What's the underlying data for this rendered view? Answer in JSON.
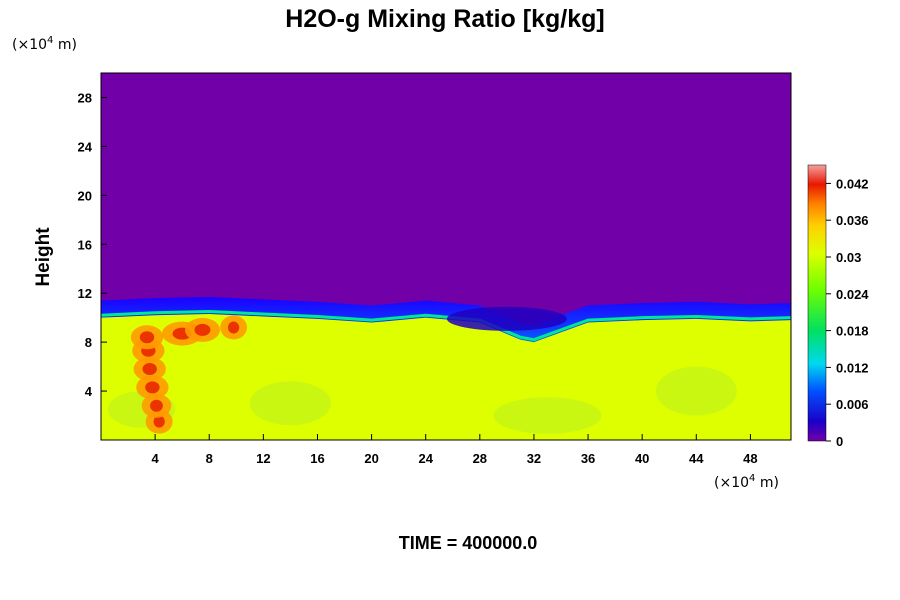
{
  "chart_data": {
    "type": "heatmap",
    "title": "H2O-g Mixing Ratio [kg/kg]",
    "ylabel": "Height",
    "xlabel": "",
    "x_unit_prefix": "(×10",
    "x_unit_exp": "4",
    "x_unit_suffix": " m)",
    "y_unit_prefix": "(×10",
    "y_unit_exp": "4",
    "y_unit_suffix": " m)",
    "footer": "TIME = 400000.0",
    "xlim": [
      0,
      51
    ],
    "ylim": [
      0,
      30
    ],
    "x_ticks": [
      4,
      8,
      12,
      16,
      20,
      24,
      28,
      32,
      36,
      40,
      44,
      48
    ],
    "y_ticks": [
      4,
      8,
      12,
      16,
      20,
      24,
      28
    ],
    "colorbar": {
      "min": 0,
      "max": 0.045,
      "ticks": [
        "0",
        "0.006",
        "0.012",
        "0.018",
        "0.024",
        "0.03",
        "0.036",
        "0.042"
      ],
      "tick_values": [
        0,
        0.006,
        0.012,
        0.018,
        0.024,
        0.03,
        0.036,
        0.042
      ]
    },
    "field_summary": {
      "upper_value": 0,
      "lower_value": 0.03,
      "boundary_height": [
        [
          0,
          10.0
        ],
        [
          4,
          10.2
        ],
        [
          8,
          10.3
        ],
        [
          12,
          10.1
        ],
        [
          16,
          9.9
        ],
        [
          20,
          9.6
        ],
        [
          24,
          10.0
        ],
        [
          28,
          9.6
        ],
        [
          31,
          8.2
        ],
        [
          32,
          8.0
        ],
        [
          36,
          9.6
        ],
        [
          40,
          9.8
        ],
        [
          44,
          9.9
        ],
        [
          48,
          9.7
        ],
        [
          51,
          9.8
        ]
      ],
      "moist_plume": {
        "x": 4,
        "y_range": [
          1,
          9.5
        ],
        "value": 0.04
      }
    },
    "colors": {
      "dry": "#7200a8",
      "moist": "#ddff00",
      "scale": [
        "#7200a8",
        "#1c00ff",
        "#00c4ff",
        "#00ff6e",
        "#88ff00",
        "#ddff00",
        "#ff9e00",
        "#e81c00",
        "#f09090"
      ]
    }
  }
}
